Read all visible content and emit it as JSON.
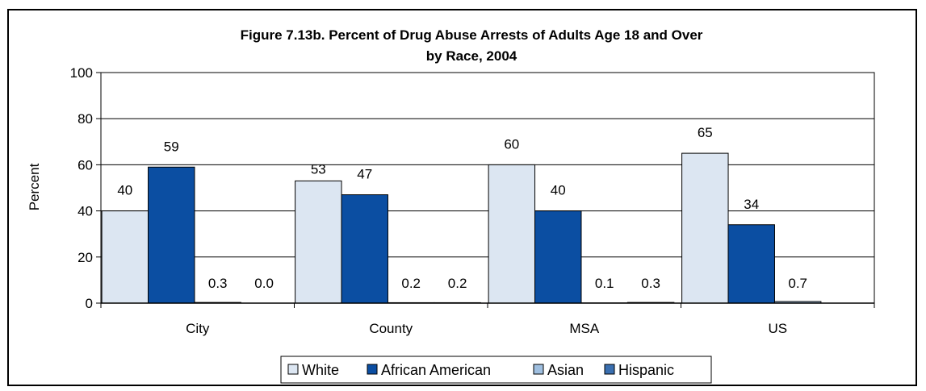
{
  "chart_data": {
    "type": "bar",
    "title_lines": [
      "Figure 7.13b. Percent of Drug Abuse Arrests of Adults Age 18 and Over",
      "by Race, 2004"
    ],
    "ylabel": "Percent",
    "xlabel": "",
    "ylim": [
      0,
      100
    ],
    "yticks": [
      0,
      20,
      40,
      60,
      80,
      100
    ],
    "grid": true,
    "legend_position": "bottom",
    "categories": [
      "City",
      "County",
      "MSA",
      "US"
    ],
    "series": [
      {
        "name": "White",
        "color": "#dce6f2",
        "values": [
          40,
          53,
          60,
          65
        ],
        "labels": [
          "40",
          "53",
          "60",
          "65"
        ]
      },
      {
        "name": "African American",
        "color": "#0b4ea2",
        "values": [
          59,
          47,
          40,
          34
        ],
        "labels": [
          "59",
          "47",
          "40",
          "34"
        ]
      },
      {
        "name": "Asian",
        "color": "#9fbfe0",
        "values": [
          0.3,
          0.2,
          0.1,
          0.7
        ],
        "labels": [
          "0.3",
          "0.2",
          "0.1",
          "0.7"
        ]
      },
      {
        "name": "Hispanic",
        "color": "#3a6fb0",
        "values": [
          0.0,
          0.2,
          0.3,
          null
        ],
        "labels": [
          "0.0",
          "0.2",
          "0.3",
          ""
        ]
      }
    ]
  }
}
